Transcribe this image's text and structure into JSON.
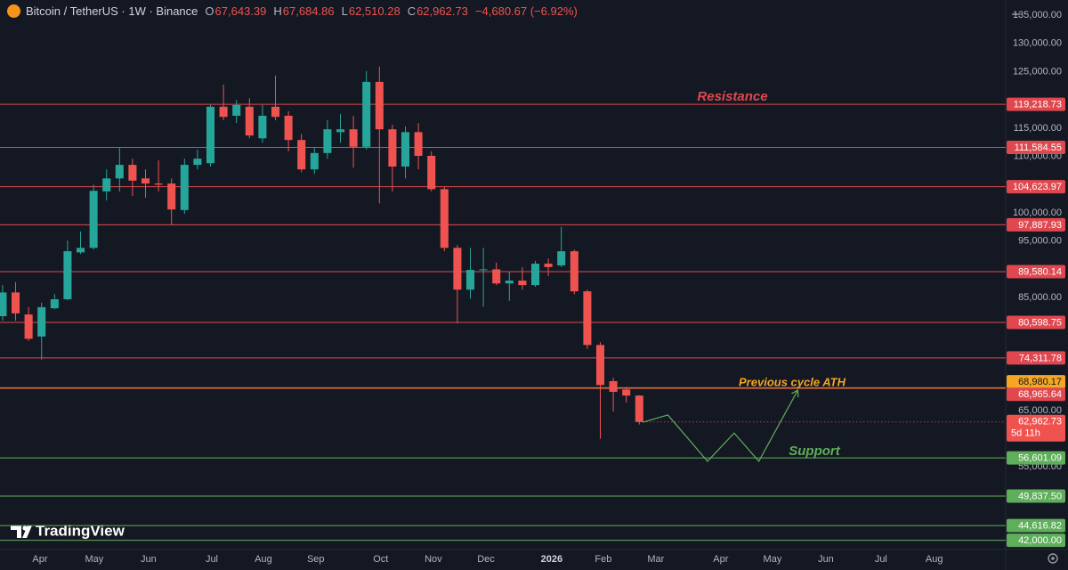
{
  "chart_data": {
    "type": "candlestick",
    "title": "Bitcoin / TetherUS · 1W · Binance",
    "ohlc_header": [
      {
        "key": "O",
        "value": "67,643.39"
      },
      {
        "key": "H",
        "value": "67,684.86"
      },
      {
        "key": "L",
        "value": "62,510.28"
      },
      {
        "key": "C",
        "value": "62,962.73"
      }
    ],
    "change": "−4,680.67 (−6.92%)",
    "categories": [
      null,
      null,
      null,
      null,
      null,
      null,
      null,
      null,
      null,
      null,
      null,
      null,
      null,
      null,
      null,
      null,
      null,
      null,
      null,
      null,
      null,
      null,
      null,
      null,
      null,
      null,
      null,
      null,
      null,
      null,
      null,
      null,
      null,
      null,
      null,
      null,
      null,
      null,
      null,
      null,
      null,
      null,
      null,
      null,
      null,
      null,
      null,
      null,
      null,
      null
    ],
    "open": [
      81700,
      85900,
      82000,
      78100,
      83100,
      84700,
      93000,
      93800,
      103800,
      106100,
      108500,
      106100,
      105200,
      105200,
      100500,
      108500,
      108800,
      118800,
      117200,
      118800,
      113200,
      118800,
      117200,
      112900,
      107700,
      110600,
      114300,
      114800,
      111700,
      123200,
      114800,
      108200,
      114300,
      110100,
      104200,
      93800,
      86400,
      89900,
      90000,
      87500,
      88000,
      87200,
      91000,
      90700,
      93200,
      86100,
      76600,
      70200,
      68700,
      67643.39
    ],
    "high": [
      87200,
      87700,
      83300,
      84100,
      85600,
      95100,
      96700,
      105000,
      107700,
      111500,
      109600,
      107700,
      109300,
      106100,
      109600,
      111200,
      119100,
      122700,
      120000,
      120300,
      119100,
      124300,
      118000,
      114000,
      111700,
      116400,
      117500,
      117200,
      125100,
      125900,
      115600,
      115300,
      115900,
      110900,
      104600,
      94300,
      93800,
      93800,
      91200,
      89600,
      90400,
      91500,
      91900,
      97500,
      93500,
      86400,
      77100,
      70800,
      69200,
      67684.86
    ],
    "low": [
      80900,
      80900,
      77300,
      74000,
      82900,
      84500,
      92700,
      93500,
      102200,
      103800,
      103000,
      102700,
      103800,
      97900,
      99800,
      107700,
      108200,
      116400,
      115900,
      113200,
      112400,
      116400,
      110900,
      107200,
      106900,
      109600,
      112400,
      108000,
      111200,
      101700,
      103800,
      106100,
      107700,
      103800,
      93200,
      80400,
      84800,
      83400,
      87200,
      84400,
      86400,
      86900,
      88800,
      90400,
      85600,
      75900,
      60000,
      64800,
      66400,
      62510.28
    ],
    "close": [
      85900,
      82200,
      77700,
      83300,
      84700,
      93200,
      93800,
      103900,
      106100,
      108500,
      105700,
      105200,
      105000,
      100600,
      108500,
      109600,
      118800,
      117000,
      119100,
      113700,
      117200,
      117000,
      112900,
      107700,
      110600,
      114800,
      114800,
      111700,
      123200,
      114800,
      108200,
      114300,
      110100,
      104200,
      93800,
      86400,
      89900,
      90000,
      87500,
      88000,
      87200,
      91000,
      90400,
      93200,
      86100,
      76600,
      69500,
      68300,
      67643.39,
      62962.73
    ],
    "up_color": "#26a69a",
    "down_color": "#ef5350",
    "xlim": [
      -0.2,
      77.2
    ],
    "ylim": [
      39900,
      137700
    ],
    "xticks": [
      {
        "value": 2.88,
        "label": "Apr"
      },
      {
        "value": 7.05,
        "label": "May"
      },
      {
        "value": 11.23,
        "label": "Jun"
      },
      {
        "value": 16.1,
        "label": "Jul"
      },
      {
        "value": 20.07,
        "label": "Aug"
      },
      {
        "value": 24.1,
        "label": "Sep"
      },
      {
        "value": 29.1,
        "label": "Oct"
      },
      {
        "value": 33.15,
        "label": "Nov"
      },
      {
        "value": 37.2,
        "label": "Dec"
      },
      {
        "value": 42.26,
        "label": "2026"
      },
      {
        "value": 46.23,
        "label": "Feb"
      },
      {
        "value": 50.27,
        "label": "Mar"
      },
      {
        "value": 55.27,
        "label": "Apr"
      },
      {
        "value": 59.25,
        "label": "May"
      },
      {
        "value": 63.36,
        "label": "Jun"
      },
      {
        "value": 67.6,
        "label": "Jul"
      },
      {
        "value": 71.7,
        "label": "Aug"
      }
    ],
    "yticks": [
      {
        "value": 135000,
        "label": "135,000.00"
      },
      {
        "value": 130000,
        "label": "130,000.00"
      },
      {
        "value": 125000,
        "label": "125,000.00"
      },
      {
        "value": 115000,
        "label": "115,000.00"
      },
      {
        "value": 110000,
        "label": "110,000.00"
      },
      {
        "value": 100000,
        "label": "100,000.00"
      },
      {
        "value": 95000,
        "label": "95,000.00"
      },
      {
        "value": 85000,
        "label": "85,000.00"
      },
      {
        "value": 65000,
        "label": "65,000.00"
      },
      {
        "value": 55000,
        "label": "55,000.00"
      }
    ],
    "levels": [
      {
        "value": 119218.73,
        "label": "119,218.73",
        "color": "#e0484f"
      },
      {
        "value": 111584.55,
        "label": "111,584.55",
        "color": "#e0484f"
      },
      {
        "value": 104623.97,
        "label": "104,623.97",
        "color": "#e0484f"
      },
      {
        "value": 97887.93,
        "label": "97,887.93",
        "color": "#e0484f"
      },
      {
        "value": 89580.14,
        "label": "89,580.14",
        "color": "#e0484f"
      },
      {
        "value": 80598.75,
        "label": "80,598.75",
        "color": "#e0484f"
      },
      {
        "value": 74311.78,
        "label": "74,311.78",
        "color": "#e0484f"
      },
      {
        "value": 68980.17,
        "label": "68,980.17",
        "color": "#f5a623"
      },
      {
        "value": 68965.64,
        "label": "68,965.64",
        "color": "#e0484f"
      },
      {
        "value": 56601.09,
        "label": "56,601.09",
        "color": "#5fae5b"
      },
      {
        "value": 49837.5,
        "label": "49,837.50",
        "color": "#5fae5b"
      },
      {
        "value": 44616.82,
        "label": "44,616.82",
        "color": "#5fae5b"
      },
      {
        "value": 42000,
        "label": "42,000.00",
        "color": "#5fae5b"
      }
    ],
    "last_price": {
      "value": 62962.73,
      "label": "62,962.73"
    },
    "countdown": "5d 11h",
    "projection": {
      "x": [
        49.25,
        51.2,
        54.25,
        56.3,
        58.2,
        61.2
      ],
      "y": [
        62900,
        64200,
        56000,
        61000,
        56000,
        68600
      ],
      "color": "#5fae5b"
    },
    "annotations": [
      {
        "text": "Resistance",
        "color": "#e0484f"
      },
      {
        "text": "Previous cycle ATH",
        "color": "#f5a623"
      },
      {
        "text": "Support",
        "color": "#5fae5b"
      }
    ],
    "watermark": "TradingView"
  }
}
